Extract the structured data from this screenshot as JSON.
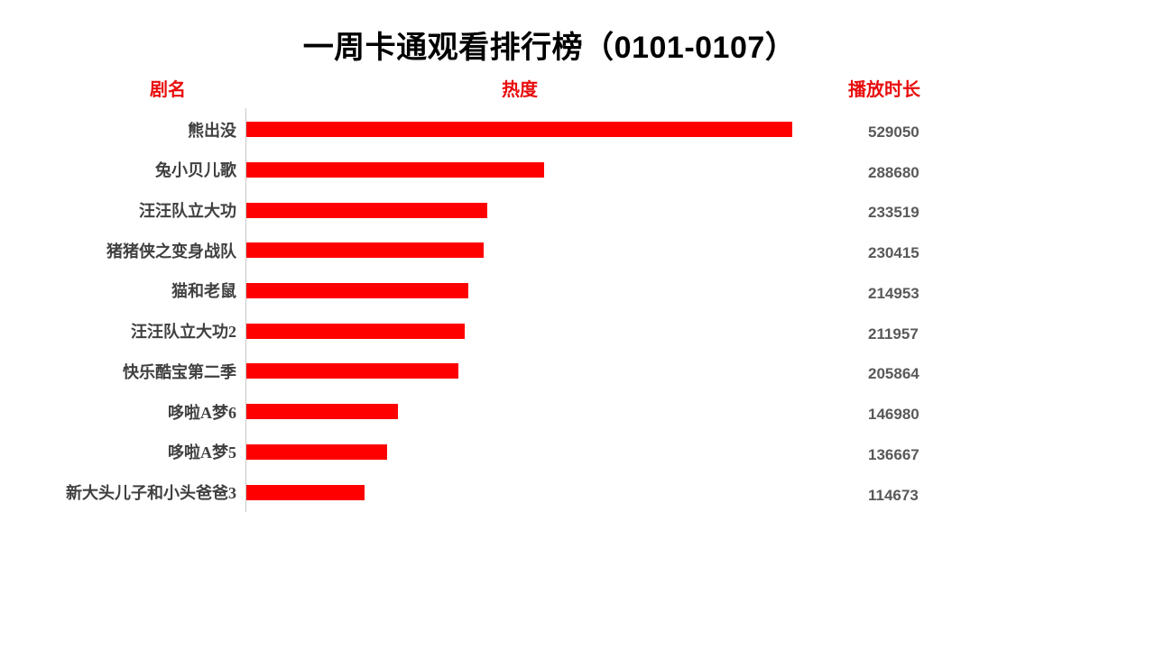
{
  "title": "一周卡通观看排行榜（0101-0107）",
  "columns": {
    "name": "剧名",
    "heat": "热度",
    "duration": "播放时长"
  },
  "chart_data": {
    "type": "bar",
    "orientation": "horizontal",
    "title": "一周卡通观看排行榜（0101-0107）",
    "category_header": "剧名",
    "bar_header": "热度",
    "value_header": "播放时长",
    "categories": [
      "熊出没",
      "兔小贝儿歌",
      "汪汪队立大功",
      "猪猪侠之变身战队",
      "猫和老鼠",
      "汪汪队立大功2",
      "快乐酷宝第二季",
      "哆啦A梦6",
      "哆啦A梦5",
      "新大头儿子和小头爸爸3"
    ],
    "values": [
      529050,
      288680,
      233519,
      230415,
      214953,
      211957,
      205864,
      146980,
      136667,
      114673
    ],
    "xlim": [
      0,
      529050
    ],
    "grid": false,
    "legend": false,
    "value_labels_shown": true,
    "colors": {
      "bar": "#ff0000",
      "header_text": "#e90d0d",
      "category_text": "#404040",
      "value_text": "#595959",
      "axis_line": "#c9c9c9",
      "title_text": "#000000",
      "background": "#ffffff"
    }
  }
}
